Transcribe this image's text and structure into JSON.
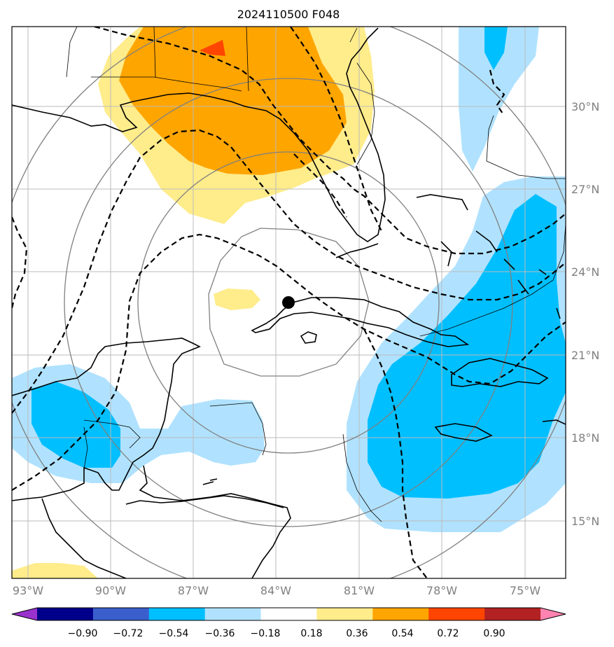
{
  "title": "2024110500 F048",
  "colors": {
    "purple": "#9a32cd",
    "navy": "#00008b",
    "royal": "#3a5fcd",
    "cyan": "#00bfff",
    "lightblue": "#b0e2ff",
    "white": "#ffffff",
    "lightyellow": "#ffec8b",
    "orange": "#ffa500",
    "redorange": "#ff4500",
    "firebrick": "#b22222",
    "pink": "#ff83b0",
    "label_gray": "#808080",
    "grid": "#bbbbbb"
  },
  "lat_labels": [
    "30°N",
    "27°N",
    "24°N",
    "21°N",
    "18°N",
    "15°N"
  ],
  "lon_labels": [
    "93°W",
    "90°W",
    "87°W",
    "84°W",
    "81°W",
    "78°W",
    "75°W"
  ],
  "colorbar": {
    "ticks": [
      "−0.90",
      "−0.72",
      "−0.54",
      "−0.36",
      "−0.18",
      "0.18",
      "0.36",
      "0.54",
      "0.72",
      "0.90"
    ],
    "segment_colors": [
      "#9a32cd",
      "#00008b",
      "#3a5fcd",
      "#00bfff",
      "#b0e2ff",
      "#ffffff",
      "#ffec8b",
      "#ffa500",
      "#ff4500",
      "#b22222",
      "#ff83b0"
    ]
  },
  "center_marker": "storm-center-dot"
}
